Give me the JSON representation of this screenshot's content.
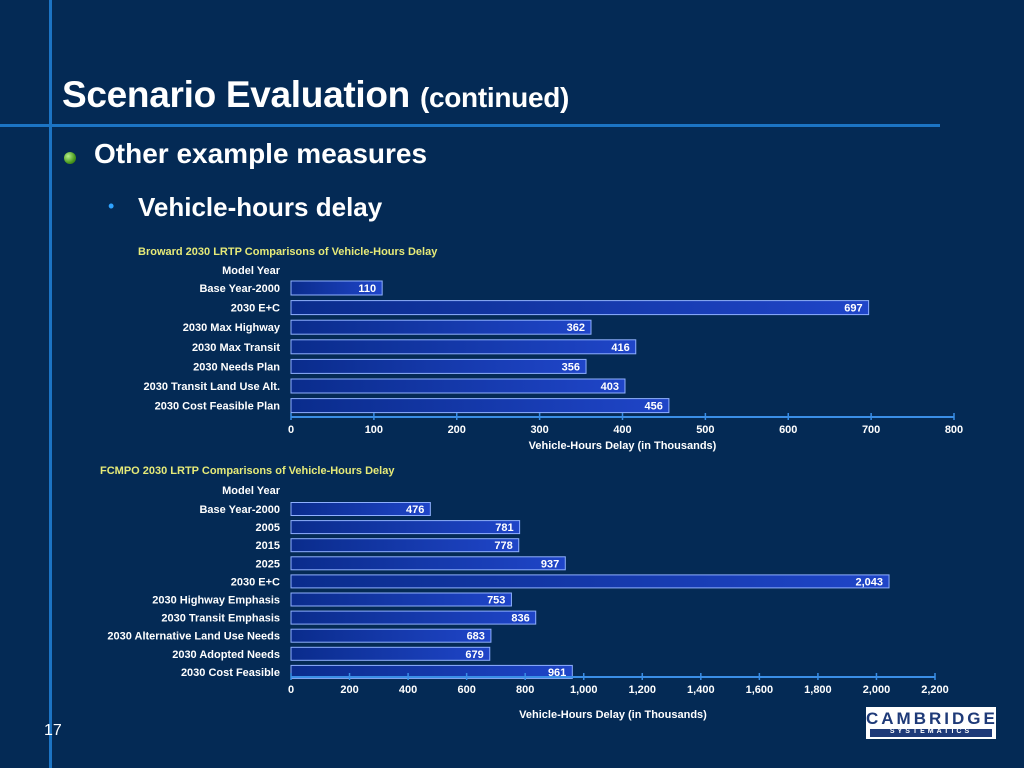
{
  "slide": {
    "title": "Scenario Evaluation",
    "title_suffix": "(continued)",
    "bullet": "Other example measures",
    "subbullet": "Vehicle-hours delay",
    "page_number": "17",
    "logo_main": "CAMBRIDGE",
    "logo_sub": "SYSTEMATICS"
  },
  "chart_data": [
    {
      "type": "bar",
      "orientation": "horizontal",
      "title": "Broward 2030 LRTP Comparisons of Vehicle-Hours Delay",
      "category_axis_title": "Model Year",
      "xlabel": "Vehicle-Hours Delay (in Thousands)",
      "categories": [
        "Base Year-2000",
        "2030 E+C",
        "2030 Max Highway",
        "2030 Max Transit",
        "2030 Needs Plan",
        "2030 Transit Land Use Alt.",
        "2030 Cost Feasible Plan"
      ],
      "values": [
        110,
        697,
        362,
        416,
        356,
        403,
        456
      ],
      "data_labels": [
        "110",
        "697",
        "362",
        "416",
        "356",
        "403",
        "456"
      ],
      "xlim": [
        0,
        800
      ],
      "ticks": [
        0,
        100,
        200,
        300,
        400,
        500,
        600,
        700,
        800
      ],
      "tick_labels": [
        "0",
        "100",
        "200",
        "300",
        "400",
        "500",
        "600",
        "700",
        "800"
      ],
      "title_color": "#e6ea78",
      "bar_color": "#1f45c8"
    },
    {
      "type": "bar",
      "orientation": "horizontal",
      "title": "FCMPO 2030 LRTP Comparisons of Vehicle-Hours Delay",
      "category_axis_title": "Model Year",
      "xlabel": "Vehicle-Hours Delay (in Thousands)",
      "categories": [
        "Base Year-2000",
        "2005",
        "2015",
        "2025",
        "2030 E+C",
        "2030 Highway Emphasis",
        "2030 Transit Emphasis",
        "2030 Alternative Land Use Needs",
        "2030 Adopted Needs",
        "2030 Cost Feasible"
      ],
      "values": [
        476,
        781,
        778,
        937,
        2043,
        753,
        836,
        683,
        679,
        961
      ],
      "data_labels": [
        "476",
        "781",
        "778",
        "937",
        "2,043",
        "753",
        "836",
        "683",
        "679",
        "961"
      ],
      "xlim": [
        0,
        2200
      ],
      "ticks": [
        0,
        200,
        400,
        600,
        800,
        1000,
        1200,
        1400,
        1600,
        1800,
        2000,
        2200
      ],
      "tick_labels": [
        "0",
        "200",
        "400",
        "600",
        "800",
        "1,000",
        "1,200",
        "1,400",
        "1,600",
        "1,800",
        "2,000",
        "2,200"
      ],
      "title_color": "#e6ea78",
      "bar_color": "#1f45c8"
    }
  ]
}
